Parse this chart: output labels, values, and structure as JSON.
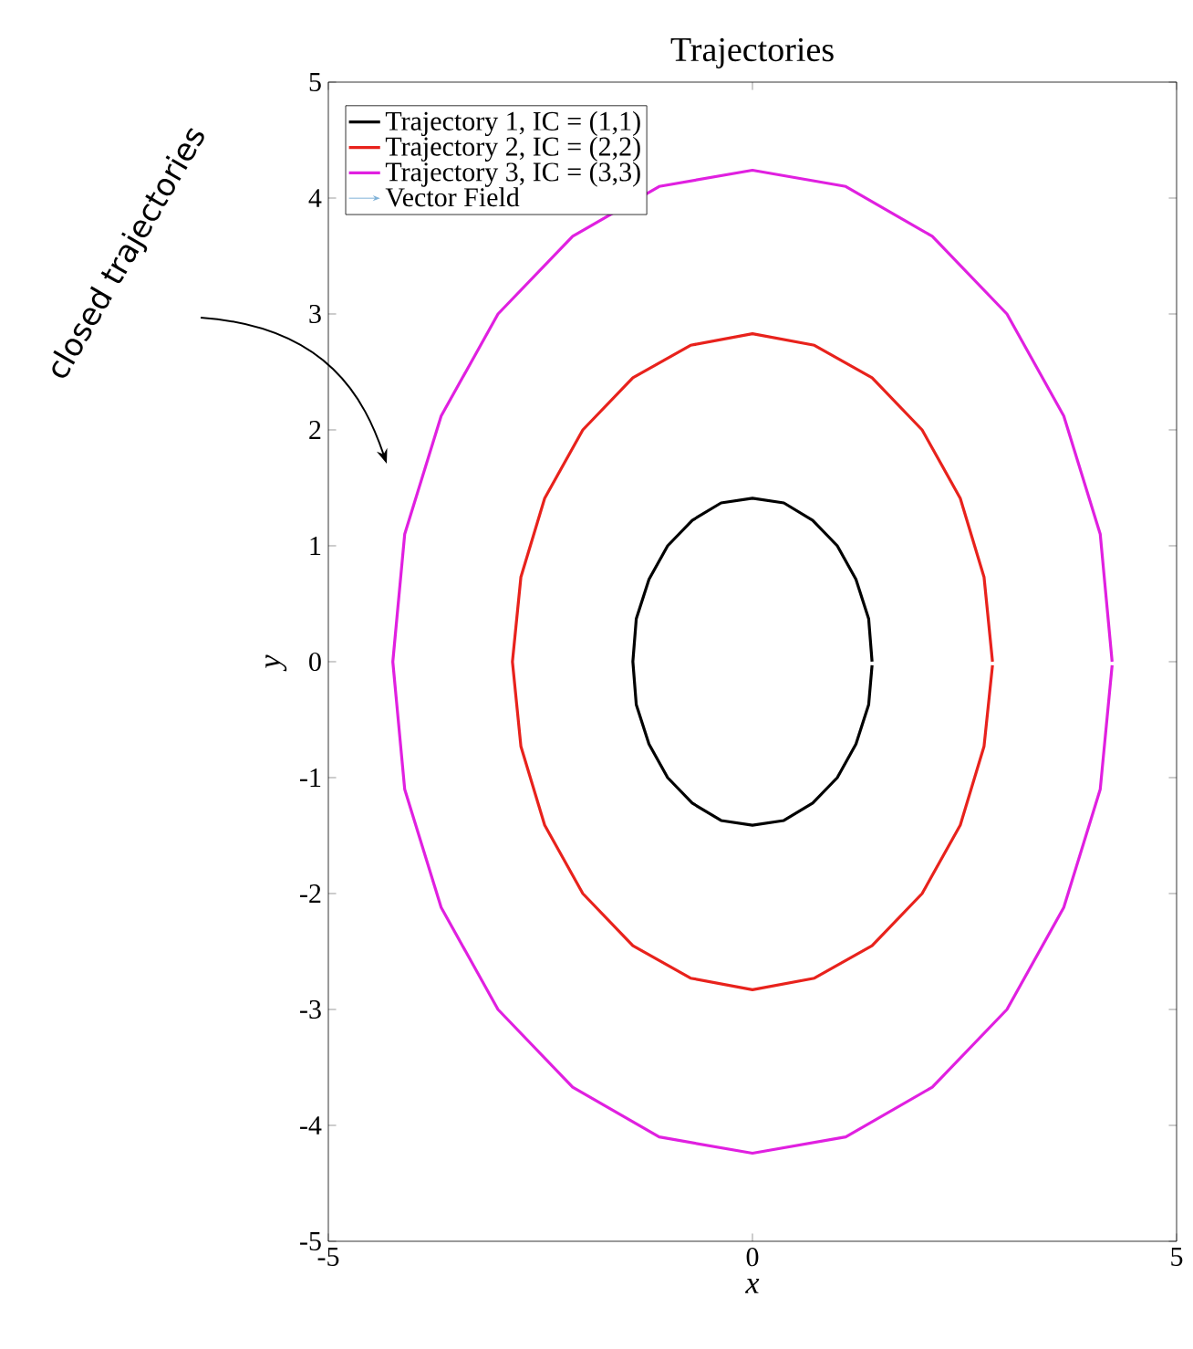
{
  "chart_data": {
    "type": "line",
    "title": "Trajectories",
    "xlabel": "x",
    "ylabel": "y",
    "xlim": [
      -5,
      5
    ],
    "ylim": [
      -5,
      5
    ],
    "xticks": [
      -5,
      0,
      5
    ],
    "yticks": [
      -5,
      -4,
      -3,
      -2,
      -1,
      0,
      1,
      2,
      3,
      4,
      5
    ],
    "legend": "top left",
    "annotations": [
      "closed trajectories"
    ],
    "series": [
      {
        "name": "Trajectory 1, IC = (1,1)",
        "color": "#000000",
        "x": [
          1.41,
          1.37,
          1.22,
          1,
          0.71,
          0.37,
          0,
          -0.37,
          -0.71,
          -1,
          -1.22,
          -1.37,
          -1.41,
          -1.37,
          -1.22,
          -1,
          -0.71,
          -0.37,
          0,
          0.37,
          0.71,
          1,
          1.22,
          1.37,
          1.41
        ],
        "values": [
          0,
          0.37,
          0.71,
          1,
          1.22,
          1.37,
          1.41,
          1.37,
          1.22,
          1,
          0.71,
          0.37,
          0,
          -0.37,
          -0.71,
          -1,
          -1.22,
          -1.37,
          -1.41,
          -1.37,
          -1.22,
          -1,
          -0.71,
          -0.37,
          -0.03
        ]
      },
      {
        "name": "Trajectory 2, IC = (2,2)",
        "color": "#e8221c",
        "x": [
          2.83,
          2.73,
          2.45,
          2,
          1.41,
          0.73,
          0,
          -0.73,
          -1.41,
          -2,
          -2.45,
          -2.73,
          -2.83,
          -2.73,
          -2.45,
          -2,
          -1.41,
          -0.73,
          0,
          0.73,
          1.41,
          2,
          2.45,
          2.73,
          2.83
        ],
        "values": [
          0,
          0.73,
          1.41,
          2,
          2.45,
          2.73,
          2.83,
          2.73,
          2.45,
          2,
          1.41,
          0.73,
          0,
          -0.73,
          -1.41,
          -2,
          -2.45,
          -2.73,
          -2.83,
          -2.73,
          -2.45,
          -2,
          -1.41,
          -0.73,
          -0.03
        ]
      },
      {
        "name": "Trajectory 3, IC = (3,3)",
        "color": "#e020e0",
        "x": [
          4.24,
          4.1,
          3.67,
          3,
          2.12,
          1.1,
          0,
          -1.1,
          -2.12,
          -3,
          -3.67,
          -4.1,
          -4.24,
          -4.1,
          -3.67,
          -3,
          -2.12,
          -1.1,
          0,
          1.1,
          2.12,
          3,
          3.67,
          4.1,
          4.24
        ],
        "values": [
          0,
          1.1,
          2.12,
          3,
          3.67,
          4.1,
          4.24,
          4.1,
          3.67,
          3,
          2.12,
          1.1,
          0,
          -1.1,
          -2.12,
          -3,
          -3.67,
          -4.1,
          -4.24,
          -4.1,
          -3.67,
          -3,
          -2.12,
          -1.1,
          -0.03
        ]
      },
      {
        "name": "Vector Field",
        "type": "other",
        "color": "#7fb2d8"
      }
    ]
  }
}
